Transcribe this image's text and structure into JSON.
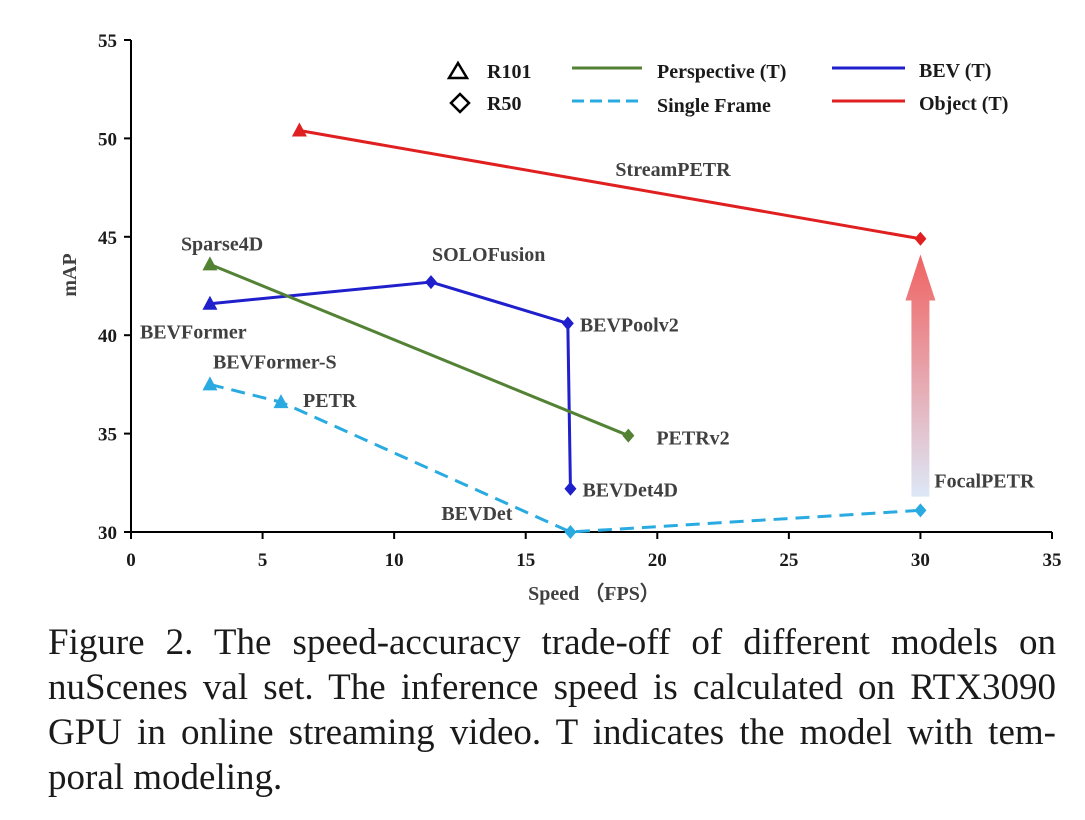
{
  "chart_data": {
    "type": "line",
    "xlabel": "Speed （FPS）",
    "ylabel": "mAP",
    "xlim": [
      0,
      35
    ],
    "ylim": [
      30,
      55
    ],
    "x_ticks": [
      "0",
      "5",
      "10",
      "15",
      "20",
      "25",
      "30",
      "35"
    ],
    "y_ticks": [
      "30",
      "35",
      "40",
      "45",
      "50",
      "55"
    ],
    "grid": false,
    "legend": {
      "position": "top",
      "markers": [
        {
          "shape": "triangle",
          "label": "R101"
        },
        {
          "shape": "diamond",
          "label": "R50"
        }
      ],
      "lines": [
        {
          "label": "Perspective (T)",
          "color": "#548235",
          "dash": "solid"
        },
        {
          "label": "Single Frame",
          "color": "#29ABE2",
          "dash": "dashed"
        },
        {
          "label": "BEV (T)",
          "color": "#1F1FCC",
          "dash": "solid"
        },
        {
          "label": "Object (T)",
          "color": "#E02020",
          "dash": "solid"
        }
      ]
    },
    "series": [
      {
        "name": "Object (T)",
        "color": "#E02020",
        "dash": "solid",
        "points": [
          {
            "x": 6.4,
            "y": 50.4,
            "marker": "triangle",
            "label": ""
          },
          {
            "x": 30.0,
            "y": 44.9,
            "marker": "diamond",
            "label": ""
          }
        ]
      },
      {
        "name": "BEV (T)",
        "color": "#1F1FCC",
        "dash": "solid",
        "points": [
          {
            "x": 3.0,
            "y": 41.6,
            "marker": "triangle",
            "label": "BEVFormer"
          },
          {
            "x": 11.4,
            "y": 42.7,
            "marker": "diamond",
            "label": "SOLOFusion"
          },
          {
            "x": 16.6,
            "y": 40.6,
            "marker": "diamond",
            "label": "BEVPoolv2"
          },
          {
            "x": 16.7,
            "y": 32.2,
            "marker": "diamond",
            "label": "BEVDet4D"
          }
        ]
      },
      {
        "name": "Perspective (T)",
        "color": "#548235",
        "dash": "solid",
        "points": [
          {
            "x": 3.0,
            "y": 43.6,
            "marker": "triangle",
            "label": "Sparse4D"
          },
          {
            "x": 18.9,
            "y": 34.9,
            "marker": "diamond",
            "label": "PETRv2"
          }
        ]
      },
      {
        "name": "Single Frame",
        "color": "#29ABE2",
        "dash": "dashed",
        "points": [
          {
            "x": 3.0,
            "y": 37.5,
            "marker": "triangle",
            "label": "BEVFormer-S"
          },
          {
            "x": 5.7,
            "y": 36.6,
            "marker": "triangle",
            "label": "PETR"
          },
          {
            "x": 16.7,
            "y": 30.0,
            "marker": "diamond",
            "label": "BEVDet"
          },
          {
            "x": 30.0,
            "y": 31.1,
            "marker": "diamond",
            "label": "FocalPETR"
          }
        ]
      }
    ],
    "annotations": [
      {
        "text": "StreamPETR",
        "color": "#404040"
      }
    ],
    "arrow": {
      "from": {
        "x": 30.0,
        "y": 31.8
      },
      "to": {
        "x": 30.0,
        "y": 44.1
      },
      "top_color": "#F06262",
      "bottom_color": "#DDE8F7"
    }
  },
  "caption": "Figure 2. The speed-accuracy trade-off of different models on nuScenes val set. The inference speed is calculated on RTX3090 GPU in online streaming video. T indicates the model with tem-poral modeling."
}
